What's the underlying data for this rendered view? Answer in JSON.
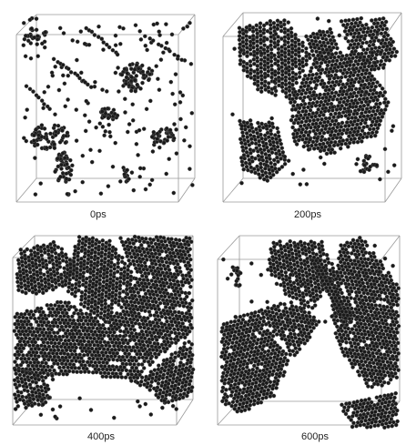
{
  "figure": {
    "panels": [
      {
        "label": "0ps"
      },
      {
        "label": "200ps"
      },
      {
        "label": "400ps"
      },
      {
        "label": "600ps"
      }
    ]
  },
  "colors": {
    "atom": "#1a1a1a",
    "atom_highlight": "#6a6a6a",
    "box_edge": "#9a9a9a",
    "background": "#ffffff"
  }
}
